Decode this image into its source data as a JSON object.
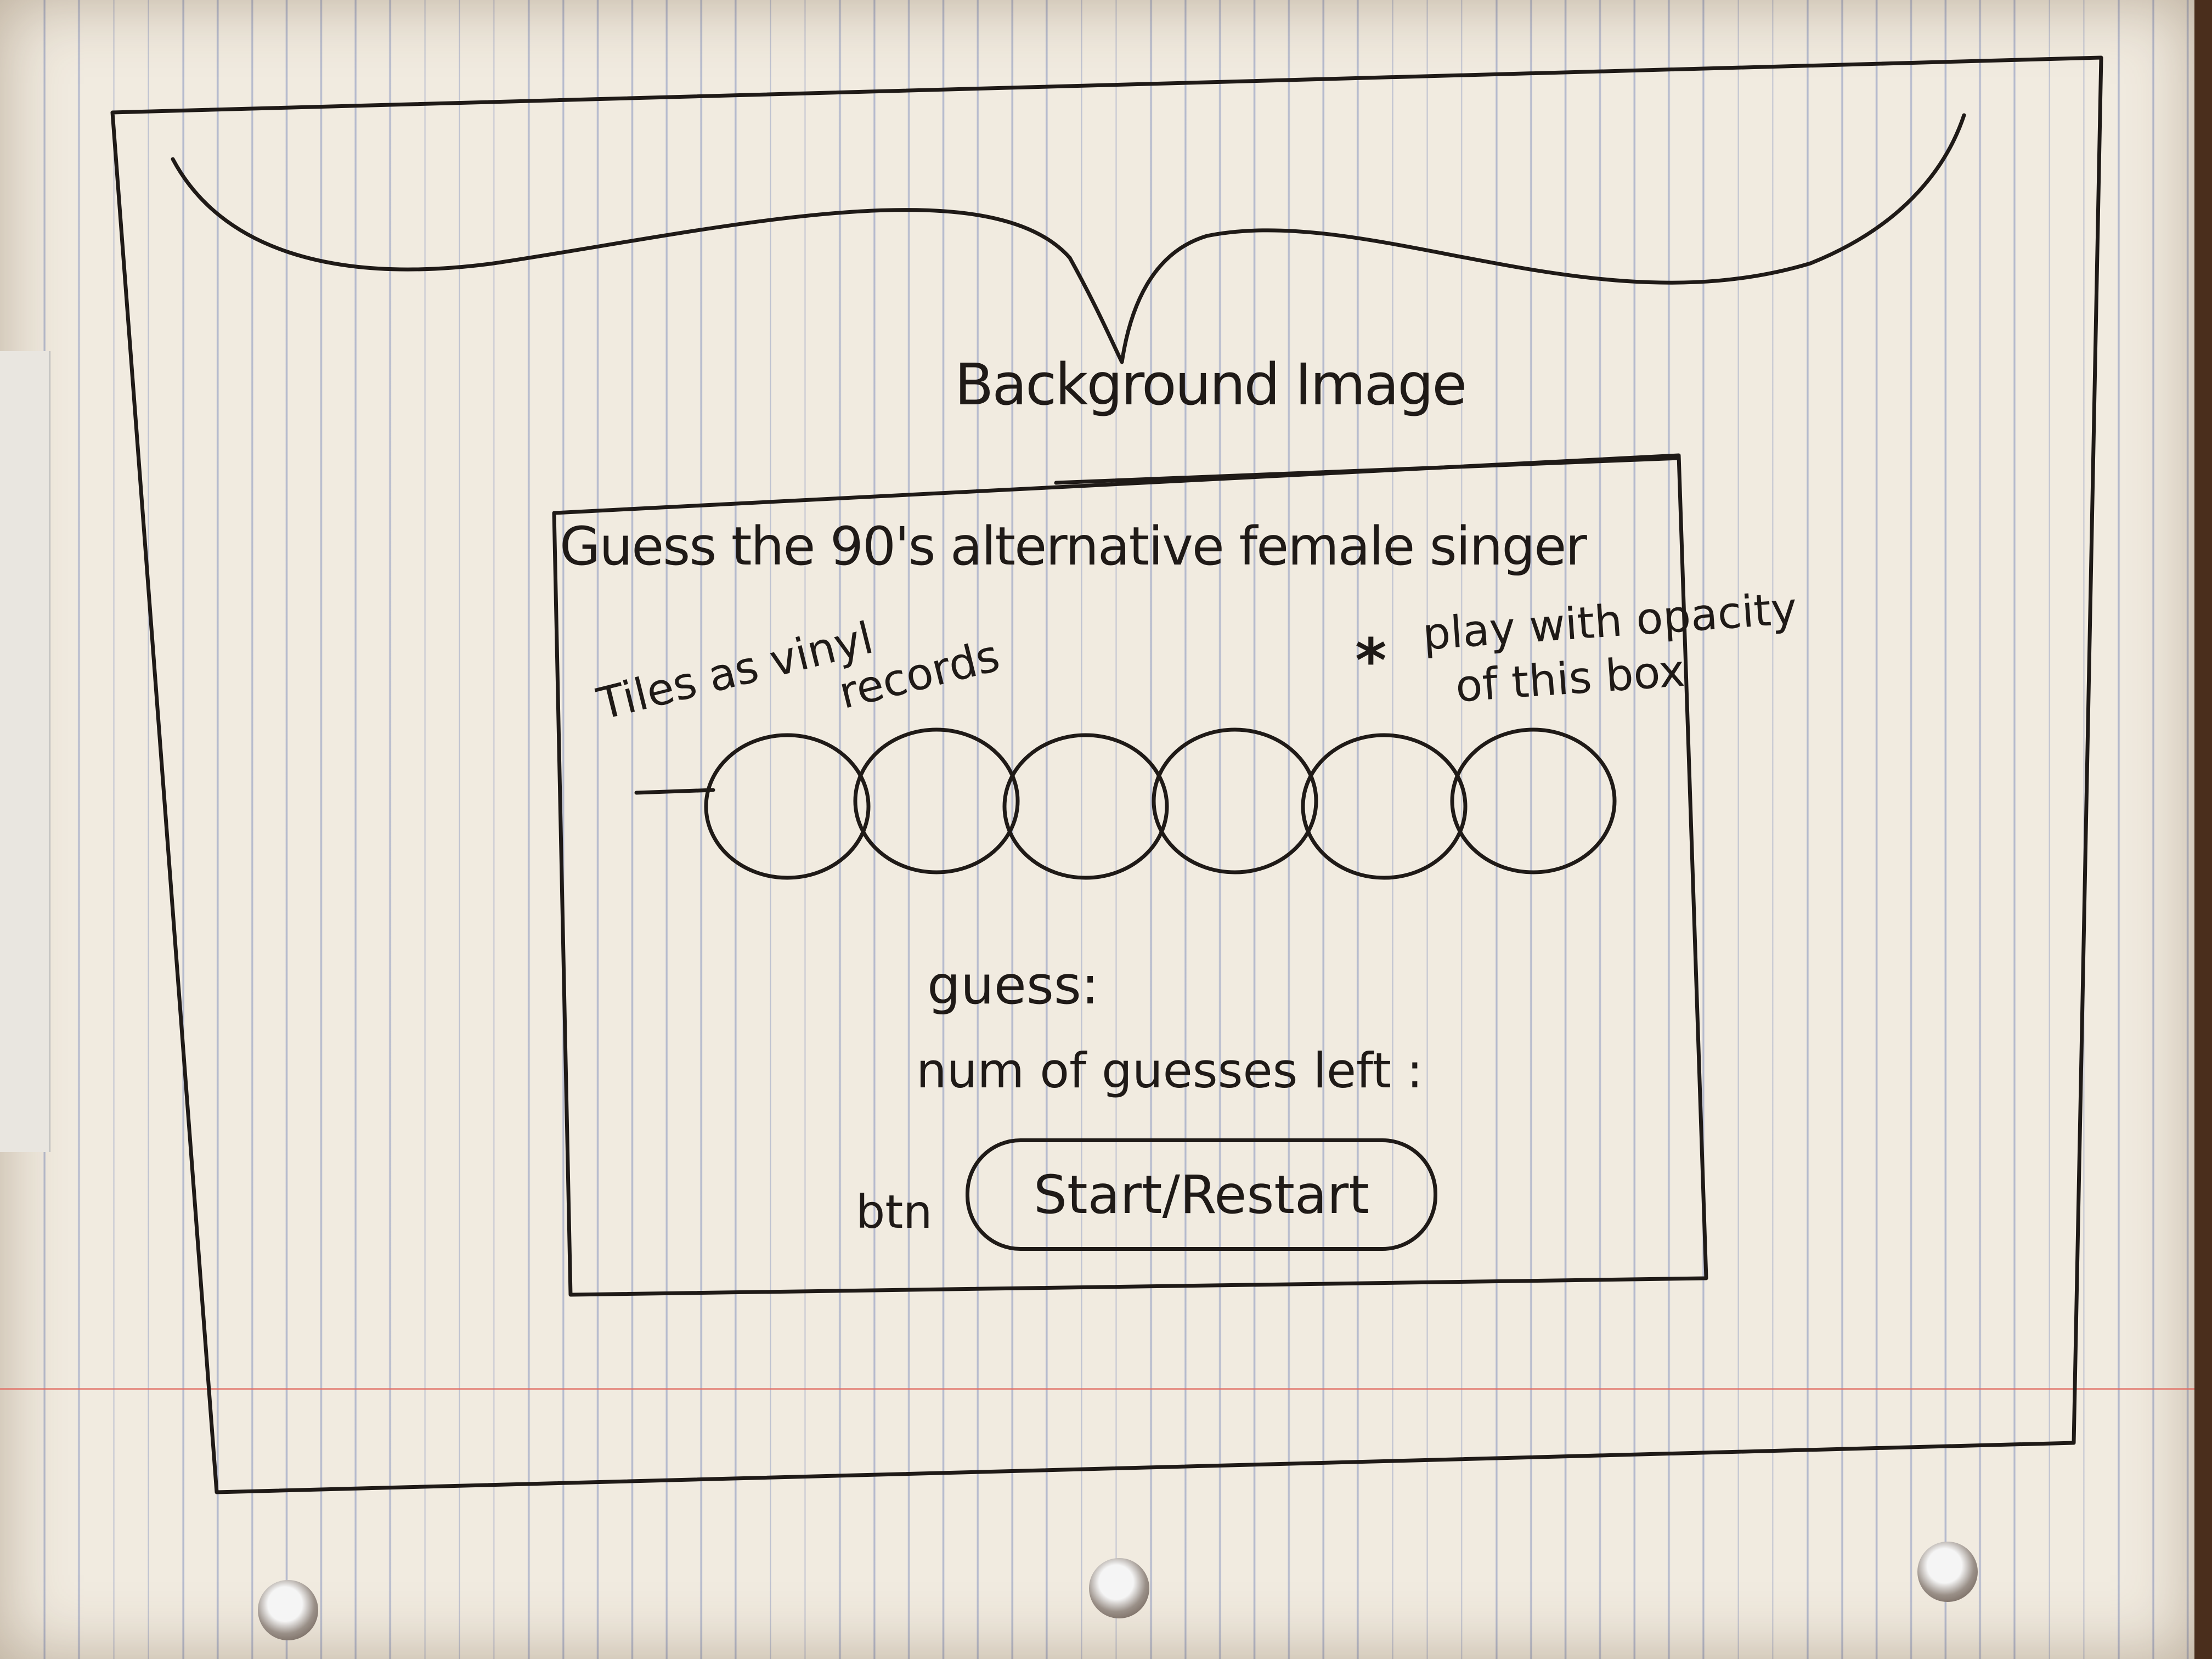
{
  "sketch": {
    "background_label": "Background Image",
    "game_title": "Guess the 90's alternative female singer",
    "tiles_note": "Tiles as vinyl",
    "tiles_note_line2": "records",
    "opacity_asterisk": "*",
    "opacity_note": "play with opacity",
    "opacity_note_line2": "of this box",
    "guess_label": "guess:",
    "guesses_left_label": "num of guesses left :",
    "button_note": "btn",
    "start_button_label": "Start/Restart"
  },
  "tiles": {
    "count": 6
  },
  "colors": {
    "ink": "#1f1a17",
    "paper": "#f1ebe0",
    "ruled_line": "#465faa",
    "margin_line": "#e16e64"
  }
}
